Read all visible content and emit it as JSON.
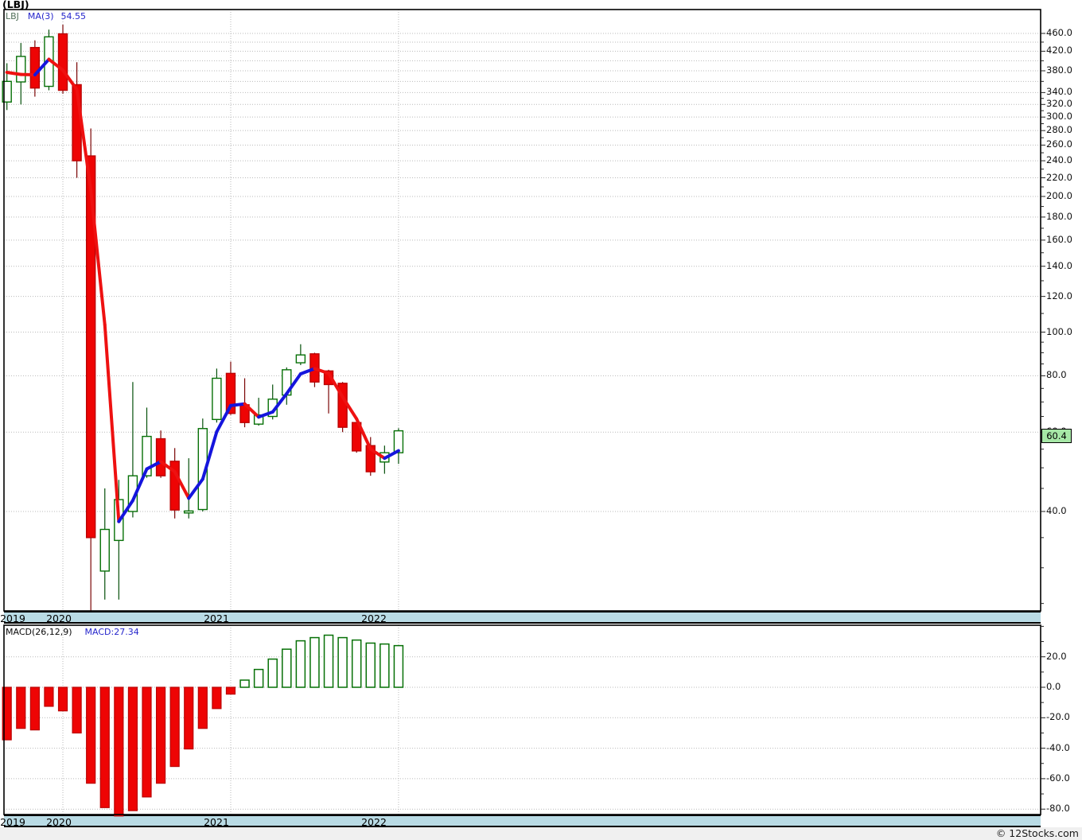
{
  "window": {
    "title": "(LBJ)"
  },
  "main_chart": {
    "legend": {
      "symbol": "LBJ",
      "ma_label": "MA(3)",
      "ma_value": "54.55"
    },
    "price_badge": "60.4",
    "y_axis_labels": [
      "460.0",
      "420.0",
      "380.0",
      "340.0",
      "320.0",
      "300.0",
      "280.0",
      "260.0",
      "240.0",
      "220.0",
      "200.0",
      "180.0",
      "160.0",
      "140.0",
      "120.0",
      "100.0",
      "80.0",
      "60.0",
      "40.0"
    ],
    "x_axis_labels": [
      "2019",
      "2020",
      "2021",
      "2022"
    ]
  },
  "macd_panel": {
    "legend": {
      "label": "MACD(26,12,9)",
      "value": "MACD:27.34"
    },
    "y_axis_labels": [
      "20.0",
      "0.0",
      "-20.0",
      "-40.0",
      "-60.0",
      "-80.0"
    ],
    "x_axis_labels": [
      "2019",
      "2020",
      "2021",
      "2022"
    ]
  },
  "footer": {
    "credit": "© 12Stocks.com"
  },
  "colors": {
    "up_border": "#067006",
    "up_fill": "#ffffff",
    "down_fill": "#ee0404",
    "down_border": "#bb0303",
    "up_wick": "#05500a",
    "down_wick": "#7b0505",
    "ma_rising": "#1515dd",
    "ma_falling": "#ee1111",
    "grid": "#b9b9b9",
    "band_bg": "#b9dbe5",
    "badge_bg": "#a6e7a6",
    "footer_bg": "#f0f0f0"
  },
  "chart_data": [
    {
      "type": "candlestick",
      "title": "LBJ monthly price candles with MA(3) overlay",
      "y_scale": "log",
      "ylim": [
        24,
        516
      ],
      "x": [
        "2019-09",
        "2019-10",
        "2019-11",
        "2019-12",
        "2020-01",
        "2020-02",
        "2020-03",
        "2020-04",
        "2020-05",
        "2020-06",
        "2020-07",
        "2020-08",
        "2020-09",
        "2020-10",
        "2020-11",
        "2020-12",
        "2021-01",
        "2021-02",
        "2021-03",
        "2021-04",
        "2021-05",
        "2021-06",
        "2021-07",
        "2021-08",
        "2021-09",
        "2021-10",
        "2021-11",
        "2021-12",
        "2022-01"
      ],
      "open": [
        324,
        359,
        428,
        351,
        459,
        354,
        246,
        29.5,
        34.5,
        40,
        48,
        58,
        51.7,
        39.7,
        40.4,
        64,
        81,
        69,
        62.5,
        65,
        72.5,
        85.5,
        89.5,
        82,
        77,
        63,
        56,
        51.5,
        54
      ],
      "high": [
        395,
        438,
        444,
        469,
        481,
        397,
        283,
        45,
        47,
        77.5,
        68,
        60.5,
        55.3,
        52.5,
        64.3,
        83,
        86,
        79,
        71.5,
        76.5,
        83.5,
        94,
        90,
        82.5,
        77.5,
        63,
        58.5,
        56,
        61.2
      ],
      "low": [
        311,
        320,
        333,
        344,
        338,
        220,
        24,
        25.5,
        25.5,
        38.8,
        47.5,
        47.5,
        38.6,
        38.6,
        40,
        63,
        65.5,
        61.5,
        62,
        64,
        69,
        84.5,
        75.5,
        66,
        60,
        54,
        48,
        48.5,
        51
      ],
      "close": [
        360,
        409,
        348,
        452,
        344,
        240,
        35,
        36.5,
        42.5,
        48,
        58.7,
        48,
        40.3,
        40.1,
        61.1,
        79,
        66,
        63,
        65.5,
        71,
        82.5,
        89,
        77.5,
        76.5,
        61.5,
        54.5,
        49,
        54,
        60.4
      ],
      "ma3": [
        377,
        373,
        372.3,
        403,
        381.3,
        345.3,
        206.3,
        103.8,
        38,
        42.3,
        49.7,
        51.6,
        49,
        42.8,
        47.2,
        60.1,
        68.7,
        69.3,
        64.8,
        66.5,
        73,
        80.8,
        83,
        81,
        71.8,
        64.2,
        55,
        52.5,
        54.55
      ],
      "last_price": 60.4,
      "legend": "LBJ  MA(3) 54.55",
      "grid": true
    },
    {
      "type": "bar",
      "title": "MACD(26,12,9) histogram, last value 27.34",
      "ylim": [
        -84.6,
        40.7
      ],
      "x": [
        "2019-09",
        "2019-10",
        "2019-11",
        "2019-12",
        "2020-01",
        "2020-02",
        "2020-03",
        "2020-04",
        "2020-05",
        "2020-06",
        "2020-07",
        "2020-08",
        "2020-09",
        "2020-10",
        "2020-11",
        "2020-12",
        "2021-01",
        "2021-02",
        "2021-03",
        "2021-04",
        "2021-05",
        "2021-06",
        "2021-07",
        "2021-08",
        "2021-09",
        "2021-10",
        "2021-11",
        "2021-12",
        "2022-01"
      ],
      "values": [
        -34.5,
        -27,
        -28,
        -12.5,
        -15.5,
        -30,
        -63,
        -79,
        -84.5,
        -81,
        -72,
        -63,
        -52,
        -40.5,
        -27,
        -14,
        -4.5,
        4.7,
        11.7,
        18.5,
        25,
        30.5,
        32.6,
        34.2,
        32.6,
        31,
        29,
        28.4,
        27.34
      ],
      "grid": true
    }
  ]
}
